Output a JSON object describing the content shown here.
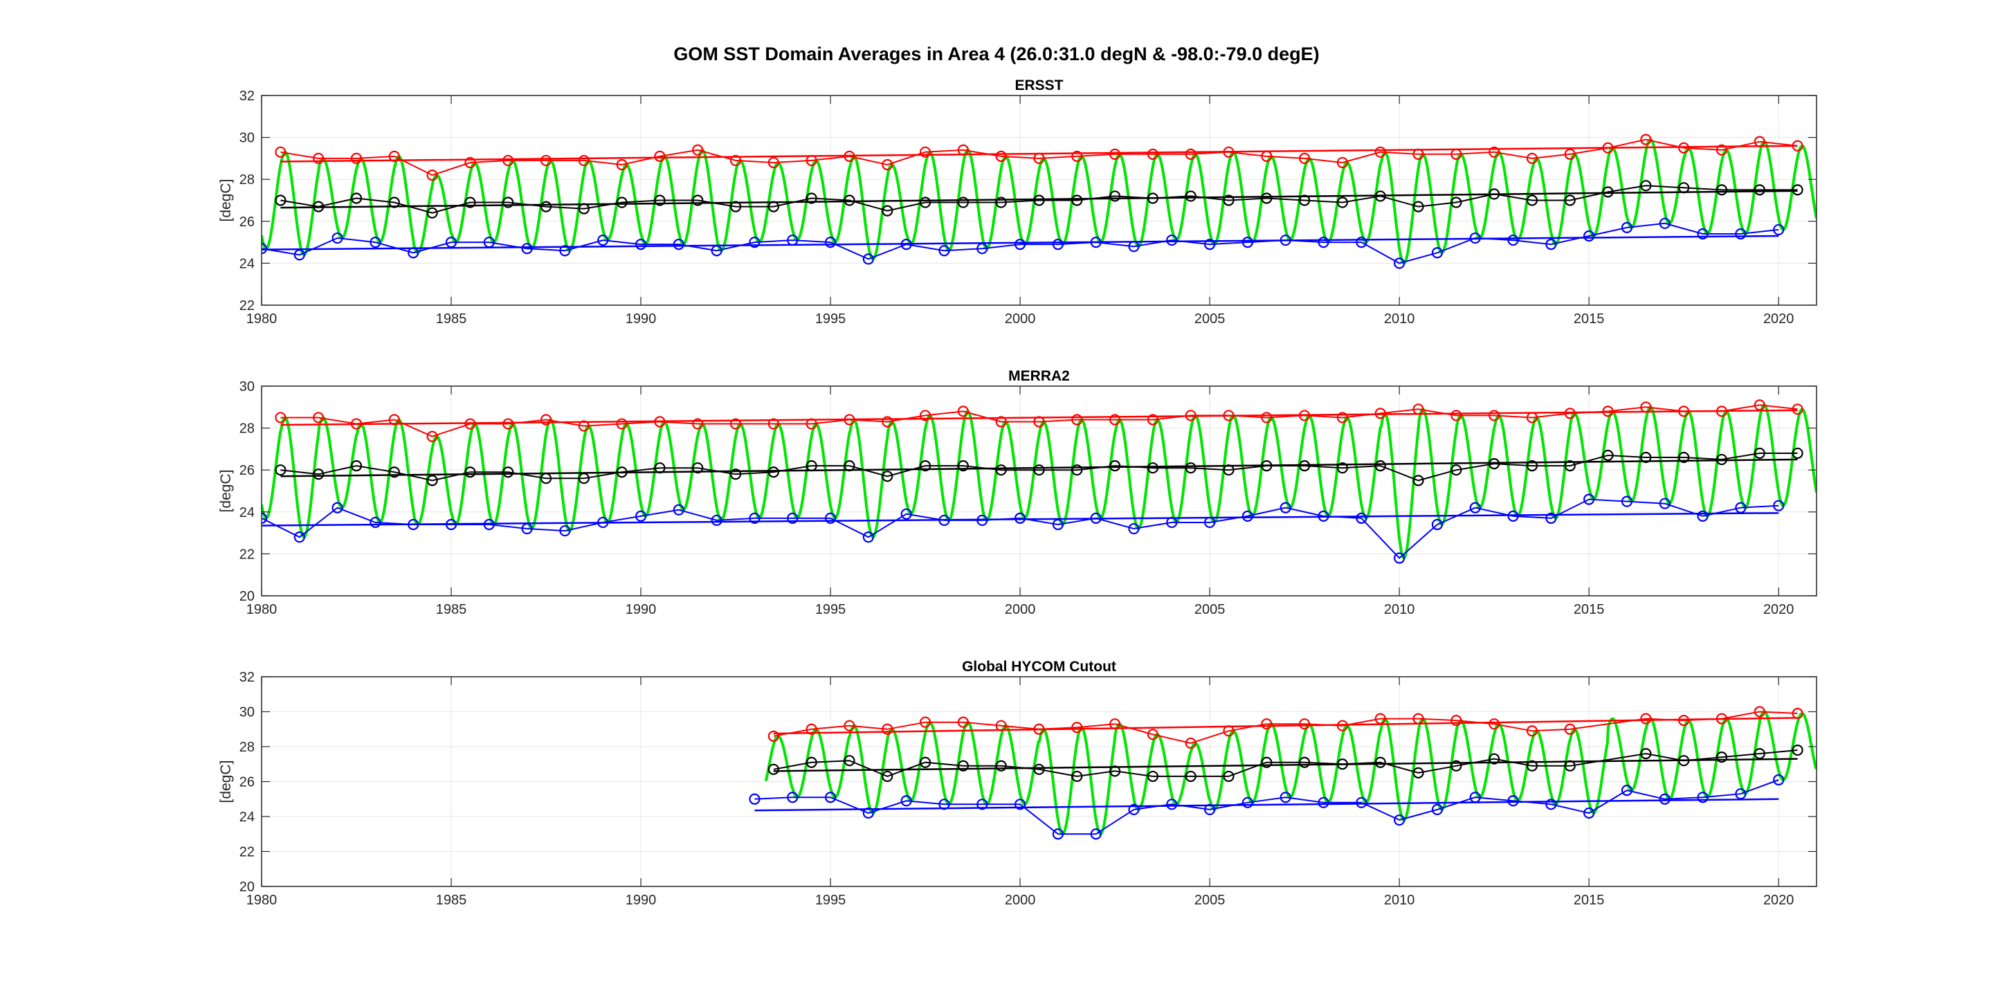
{
  "figure": {
    "title": "GOM SST Domain Averages in Area 4 (26.0:31.0 degN & -98.0:-79.0 degE)"
  },
  "colors": {
    "monthly": "#00e600",
    "max": "#ff0000",
    "mean": "#000000",
    "min": "#0000ff",
    "axis": "#262626",
    "grid": "#e6e6e6"
  },
  "chart_data": [
    {
      "type": "line",
      "title": "ERSST",
      "ylabel": "[degC]",
      "xlabel": "",
      "xlim": [
        1980,
        2021
      ],
      "ylim": [
        22,
        32
      ],
      "xticks": [
        1980,
        1985,
        1990,
        1995,
        2000,
        2005,
        2010,
        2015,
        2020
      ],
      "yticks": [
        22,
        24,
        26,
        28,
        30,
        32
      ],
      "grid": true,
      "monthly": {
        "start": 1980,
        "end": 2021,
        "mean": 27.0,
        "amp_hi": 2.5,
        "amp_lo": 2.7
      },
      "series": [
        {
          "role": "max",
          "x": [
            1980.5,
            1981.5,
            1982.5,
            1983.5,
            1984.5,
            1985.5,
            1986.5,
            1987.5,
            1988.5,
            1989.5,
            1990.5,
            1991.5,
            1992.5,
            1993.5,
            1994.5,
            1995.5,
            1996.5,
            1997.5,
            1998.5,
            1999.5,
            2000.5,
            2001.5,
            2002.5,
            2003.5,
            2004.5,
            2005.5,
            2006.5,
            2007.5,
            2008.5,
            2009.5,
            2010.5,
            2011.5,
            2012.5,
            2013.5,
            2014.5,
            2015.5,
            2016.5,
            2017.5,
            2018.5,
            2019.5,
            2020.5
          ],
          "values": [
            29.3,
            29.0,
            29.0,
            29.1,
            28.2,
            28.8,
            28.9,
            28.9,
            28.9,
            28.7,
            29.1,
            29.4,
            28.9,
            28.8,
            28.9,
            29.1,
            28.7,
            29.3,
            29.4,
            29.1,
            29.0,
            29.1,
            29.2,
            29.2,
            29.2,
            29.3,
            29.1,
            29.0,
            28.8,
            29.3,
            29.2,
            29.2,
            29.3,
            29.0,
            29.2,
            29.5,
            29.9,
            29.5,
            29.4,
            29.8,
            29.6
          ],
          "trend": [
            28.85,
            29.6
          ]
        },
        {
          "role": "mean",
          "x": [
            1980.5,
            1981.5,
            1982.5,
            1983.5,
            1984.5,
            1985.5,
            1986.5,
            1987.5,
            1988.5,
            1989.5,
            1990.5,
            1991.5,
            1992.5,
            1993.5,
            1994.5,
            1995.5,
            1996.5,
            1997.5,
            1998.5,
            1999.5,
            2000.5,
            2001.5,
            2002.5,
            2003.5,
            2004.5,
            2005.5,
            2006.5,
            2007.5,
            2008.5,
            2009.5,
            2010.5,
            2011.5,
            2012.5,
            2013.5,
            2014.5,
            2015.5,
            2016.5,
            2017.5,
            2018.5,
            2019.5,
            2020.5
          ],
          "values": [
            27.0,
            26.7,
            27.1,
            26.9,
            26.4,
            26.9,
            26.9,
            26.7,
            26.6,
            26.9,
            27.0,
            27.0,
            26.7,
            26.7,
            27.1,
            27.0,
            26.5,
            26.9,
            26.9,
            26.9,
            27.0,
            27.0,
            27.2,
            27.1,
            27.2,
            27.0,
            27.1,
            27.0,
            26.9,
            27.2,
            26.7,
            26.9,
            27.3,
            27.0,
            27.0,
            27.4,
            27.7,
            27.6,
            27.5,
            27.5,
            27.5
          ],
          "trend": [
            26.65,
            27.45
          ]
        },
        {
          "role": "min",
          "x": [
            1980.0,
            1981.0,
            1982.0,
            1983.0,
            1984.0,
            1985.0,
            1986.0,
            1987.0,
            1988.0,
            1989.0,
            1990.0,
            1991.0,
            1992.0,
            1993.0,
            1994.0,
            1995.0,
            1996.0,
            1997.0,
            1998.0,
            1999.0,
            2000.0,
            2001.0,
            2002.0,
            2003.0,
            2004.0,
            2005.0,
            2006.0,
            2007.0,
            2008.0,
            2009.0,
            2010.0,
            2011.0,
            2012.0,
            2013.0,
            2014.0,
            2015.0,
            2016.0,
            2017.0,
            2018.0,
            2019.0,
            2020.0
          ],
          "values": [
            24.7,
            24.4,
            25.2,
            25.0,
            24.5,
            25.0,
            25.0,
            24.7,
            24.6,
            25.1,
            24.9,
            24.9,
            24.6,
            25.0,
            25.1,
            25.0,
            24.2,
            24.9,
            24.6,
            24.7,
            24.9,
            24.9,
            25.0,
            24.8,
            25.1,
            24.9,
            25.0,
            25.1,
            25.0,
            25.0,
            24.0,
            24.5,
            25.2,
            25.1,
            24.9,
            25.3,
            25.7,
            25.9,
            25.4,
            25.4,
            25.6
          ],
          "trend": [
            24.65,
            25.3
          ]
        }
      ]
    },
    {
      "type": "line",
      "title": "MERRA2",
      "ylabel": "[degC]",
      "xlabel": "",
      "xlim": [
        1980,
        2021
      ],
      "ylim": [
        20,
        30
      ],
      "xticks": [
        1980,
        1985,
        1990,
        1995,
        2000,
        2005,
        2010,
        2015,
        2020
      ],
      "yticks": [
        20,
        22,
        24,
        26,
        28,
        30
      ],
      "grid": true,
      "monthly": {
        "start": 1980,
        "end": 2021,
        "mean": 25.9,
        "amp_hi": 3.0,
        "amp_lo": 3.1
      },
      "series": [
        {
          "role": "max",
          "x": [
            1980.5,
            1981.5,
            1982.5,
            1983.5,
            1984.5,
            1985.5,
            1986.5,
            1987.5,
            1988.5,
            1989.5,
            1990.5,
            1991.5,
            1992.5,
            1993.5,
            1994.5,
            1995.5,
            1996.5,
            1997.5,
            1998.5,
            1999.5,
            2000.5,
            2001.5,
            2002.5,
            2003.5,
            2004.5,
            2005.5,
            2006.5,
            2007.5,
            2008.5,
            2009.5,
            2010.5,
            2011.5,
            2012.5,
            2013.5,
            2014.5,
            2015.5,
            2016.5,
            2017.5,
            2018.5,
            2019.5,
            2020.5
          ],
          "values": [
            28.5,
            28.5,
            28.2,
            28.4,
            27.6,
            28.2,
            28.2,
            28.4,
            28.1,
            28.2,
            28.3,
            28.2,
            28.2,
            28.2,
            28.2,
            28.4,
            28.3,
            28.6,
            28.8,
            28.3,
            28.3,
            28.4,
            28.4,
            28.4,
            28.6,
            28.6,
            28.5,
            28.6,
            28.5,
            28.7,
            28.9,
            28.6,
            28.6,
            28.5,
            28.7,
            28.8,
            29.0,
            28.8,
            28.8,
            29.1,
            28.9
          ],
          "trend": [
            28.15,
            28.85
          ]
        },
        {
          "role": "mean",
          "x": [
            1980.5,
            1981.5,
            1982.5,
            1983.5,
            1984.5,
            1985.5,
            1986.5,
            1987.5,
            1988.5,
            1989.5,
            1990.5,
            1991.5,
            1992.5,
            1993.5,
            1994.5,
            1995.5,
            1996.5,
            1997.5,
            1998.5,
            1999.5,
            2000.5,
            2001.5,
            2002.5,
            2003.5,
            2004.5,
            2005.5,
            2006.5,
            2007.5,
            2008.5,
            2009.5,
            2010.5,
            2011.5,
            2012.5,
            2013.5,
            2014.5,
            2015.5,
            2016.5,
            2017.5,
            2018.5,
            2019.5,
            2020.5
          ],
          "values": [
            26.0,
            25.8,
            26.2,
            25.9,
            25.5,
            25.9,
            25.9,
            25.6,
            25.6,
            25.9,
            26.1,
            26.1,
            25.8,
            25.9,
            26.2,
            26.2,
            25.7,
            26.2,
            26.2,
            26.0,
            26.0,
            26.0,
            26.2,
            26.1,
            26.1,
            26.0,
            26.2,
            26.2,
            26.1,
            26.2,
            25.5,
            26.0,
            26.3,
            26.2,
            26.2,
            26.7,
            26.6,
            26.6,
            26.5,
            26.8,
            26.8
          ],
          "trend": [
            25.7,
            26.5
          ]
        },
        {
          "role": "min",
          "x": [
            1980.0,
            1981.0,
            1982.0,
            1983.0,
            1984.0,
            1985.0,
            1986.0,
            1987.0,
            1988.0,
            1989.0,
            1990.0,
            1991.0,
            1992.0,
            1993.0,
            1994.0,
            1995.0,
            1996.0,
            1997.0,
            1998.0,
            1999.0,
            2000.0,
            2001.0,
            2002.0,
            2003.0,
            2004.0,
            2005.0,
            2006.0,
            2007.0,
            2008.0,
            2009.0,
            2010.0,
            2011.0,
            2012.0,
            2013.0,
            2014.0,
            2015.0,
            2016.0,
            2017.0,
            2018.0,
            2019.0,
            2020.0
          ],
          "values": [
            23.7,
            22.8,
            24.2,
            23.5,
            23.4,
            23.4,
            23.4,
            23.2,
            23.1,
            23.5,
            23.8,
            24.1,
            23.6,
            23.7,
            23.7,
            23.7,
            22.8,
            23.9,
            23.6,
            23.6,
            23.7,
            23.4,
            23.7,
            23.2,
            23.5,
            23.5,
            23.8,
            24.2,
            23.8,
            23.7,
            21.8,
            23.4,
            24.2,
            23.8,
            23.7,
            24.6,
            24.5,
            24.4,
            23.8,
            24.2,
            24.3
          ],
          "trend": [
            23.35,
            23.95
          ]
        }
      ]
    },
    {
      "type": "line",
      "title": "Global HYCOM Cutout",
      "ylabel": "[degC]",
      "xlabel": "",
      "xlim": [
        1980,
        2021
      ],
      "ylim": [
        20,
        32
      ],
      "xticks": [
        1980,
        1985,
        1990,
        1995,
        2000,
        2005,
        2010,
        2015,
        2020
      ],
      "yticks": [
        20,
        22,
        24,
        26,
        28,
        30,
        32
      ],
      "grid": true,
      "monthly": {
        "start": 1993.3,
        "end": 2021,
        "mean": 27.0,
        "amp_hi": 2.6,
        "amp_lo": 2.9
      },
      "series": [
        {
          "role": "max",
          "x": [
            1993.5,
            1994.5,
            1995.5,
            1996.5,
            1997.5,
            1998.5,
            1999.5,
            2000.5,
            2001.5,
            2002.5,
            2003.5,
            2004.5,
            2005.5,
            2006.5,
            2007.5,
            2008.5,
            2009.5,
            2010.5,
            2011.5,
            2012.5,
            2013.5,
            2014.5,
            2016.5,
            2017.5,
            2018.5,
            2019.5,
            2020.5
          ],
          "values": [
            28.6,
            29.0,
            29.2,
            29.0,
            29.4,
            29.4,
            29.2,
            29.0,
            29.1,
            29.3,
            28.7,
            28.2,
            28.9,
            29.3,
            29.3,
            29.2,
            29.6,
            29.6,
            29.5,
            29.3,
            28.9,
            29.0,
            29.6,
            29.5,
            29.6,
            30.0,
            29.9
          ],
          "trend": [
            28.75,
            29.65
          ]
        },
        {
          "role": "mean",
          "x": [
            1993.5,
            1994.5,
            1995.5,
            1996.5,
            1997.5,
            1998.5,
            1999.5,
            2000.5,
            2001.5,
            2002.5,
            2003.5,
            2004.5,
            2005.5,
            2006.5,
            2007.5,
            2008.5,
            2009.5,
            2010.5,
            2011.5,
            2012.5,
            2013.5,
            2014.5,
            2016.5,
            2017.5,
            2018.5,
            2019.5,
            2020.5
          ],
          "values": [
            26.7,
            27.1,
            27.2,
            26.3,
            27.1,
            26.9,
            26.9,
            26.7,
            26.3,
            26.6,
            26.3,
            26.3,
            26.3,
            27.1,
            27.1,
            27.0,
            27.1,
            26.5,
            26.9,
            27.3,
            26.9,
            26.9,
            27.6,
            27.2,
            27.4,
            27.6,
            27.8
          ],
          "trend": [
            26.6,
            27.3
          ]
        },
        {
          "role": "min",
          "x": [
            1993.0,
            1994.0,
            1995.0,
            1996.0,
            1997.0,
            1998.0,
            1999.0,
            2000.0,
            2001.0,
            2002.0,
            2003.0,
            2004.0,
            2005.0,
            2006.0,
            2007.0,
            2008.0,
            2009.0,
            2010.0,
            2011.0,
            2012.0,
            2013.0,
            2014.0,
            2015.0,
            2016.0,
            2017.0,
            2018.0,
            2019.0,
            2020.0
          ],
          "values": [
            25.0,
            25.1,
            25.1,
            24.2,
            24.9,
            24.7,
            24.7,
            24.7,
            23.0,
            23.0,
            24.4,
            24.7,
            24.4,
            24.8,
            25.1,
            24.8,
            24.8,
            23.8,
            24.4,
            25.1,
            24.9,
            24.7,
            24.2,
            25.5,
            25.0,
            25.1,
            25.3,
            26.1
          ],
          "trend": [
            24.35,
            25.0
          ]
        }
      ]
    }
  ]
}
